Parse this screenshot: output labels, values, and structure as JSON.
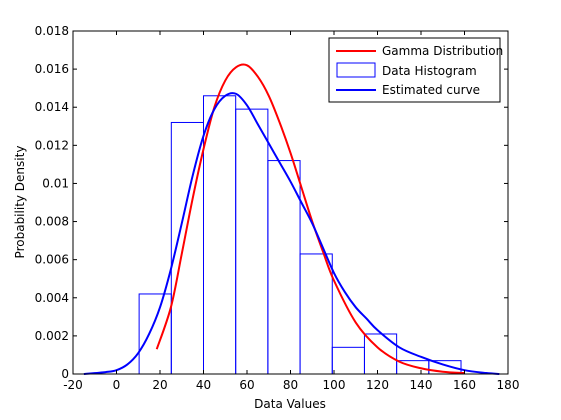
{
  "chart_data": {
    "type": "bar",
    "title": "",
    "xlabel": "Data Values",
    "ylabel": "Probability Density",
    "xlim": [
      -20,
      180
    ],
    "ylim": [
      0,
      0.018
    ],
    "x_ticks": [
      -20,
      0,
      20,
      40,
      60,
      80,
      100,
      120,
      140,
      160,
      180
    ],
    "y_ticks": [
      0,
      0.002,
      0.004,
      0.006,
      0.008,
      0.01,
      0.012,
      0.014,
      0.016,
      0.018
    ],
    "x_tick_labels": [
      "-20",
      "0",
      "20",
      "40",
      "60",
      "80",
      "100",
      "120",
      "140",
      "160",
      "180"
    ],
    "y_tick_labels": [
      "0",
      "0.002",
      "0.004",
      "0.006",
      "0.008",
      "0.01",
      "0.012",
      "0.014",
      "0.016",
      "0.018"
    ],
    "grid": false,
    "legend_position": "top-right",
    "legend": [
      {
        "label": "Gamma Distribution",
        "color": "#ff0000",
        "style": "line"
      },
      {
        "label": "Data Histogram",
        "color": "#0000ff",
        "style": "box"
      },
      {
        "label": "Estimated curve",
        "color": "#0000ff",
        "style": "line"
      }
    ],
    "histogram": {
      "name": "Data Histogram",
      "color": "#0000ff",
      "bin_edges": [
        10.4,
        25.2,
        40,
        54.8,
        69.6,
        84.4,
        99.2,
        114,
        128.8,
        143.6,
        158.4
      ],
      "values": [
        0.0042,
        0.0132,
        0.0146,
        0.0139,
        0.0112,
        0.0063,
        0.0014,
        0.0021,
        0.0007,
        0.0007
      ]
    },
    "series": [
      {
        "name": "Gamma Distribution",
        "color": "#ff0000",
        "x": [
          18.5,
          25,
          30,
          35,
          40,
          45,
          50,
          55,
          60,
          65,
          70,
          75,
          80,
          85,
          90,
          95,
          100,
          110,
          120,
          130,
          140,
          150,
          160
        ],
        "y": [
          0.0013,
          0.0035,
          0.0063,
          0.0092,
          0.0118,
          0.014,
          0.0154,
          0.0161,
          0.0162,
          0.0156,
          0.0146,
          0.0132,
          0.0116,
          0.0098,
          0.008,
          0.0064,
          0.0049,
          0.0027,
          0.0014,
          0.00065,
          0.0003,
          0.00012,
          5e-05
        ]
      },
      {
        "name": "Estimated curve",
        "color": "#0000ff",
        "x": [
          -15,
          -5,
          0,
          5,
          10,
          15,
          20,
          25,
          30,
          35,
          40,
          45,
          50,
          55,
          60,
          65,
          70,
          75,
          80,
          85,
          90,
          95,
          100,
          105,
          110,
          115,
          120,
          130,
          140,
          150,
          160,
          170,
          176
        ],
        "y": [
          0,
          0.0001,
          0.0002,
          0.0005,
          0.0011,
          0.0021,
          0.0035,
          0.0055,
          0.0079,
          0.0104,
          0.0125,
          0.0139,
          0.0146,
          0.0147,
          0.0141,
          0.0131,
          0.0121,
          0.0111,
          0.0101,
          0.009,
          0.0079,
          0.0066,
          0.0053,
          0.0043,
          0.0035,
          0.0029,
          0.0023,
          0.0014,
          0.0009,
          0.0005,
          0.0002,
          5e-05,
          0
        ]
      }
    ]
  }
}
